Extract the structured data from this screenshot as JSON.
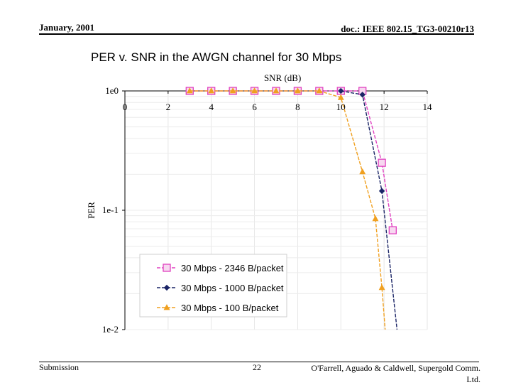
{
  "header": {
    "date": "January, 2001",
    "doc_id": "doc.: IEEE 802.15_TG3-00210r13"
  },
  "title": "PER v. SNR in the AWGN channel for 30 Mbps",
  "footer": {
    "left": "Submission",
    "page": "22",
    "right": "O'Farrell, Aguado & Caldwell, Supergold Comm. Ltd."
  },
  "chart_data": {
    "type": "line",
    "xlabel": "SNR (dB)",
    "ylabel": "PER",
    "xlim": [
      0,
      14
    ],
    "x_ticks": [
      "0",
      "2",
      "4",
      "6",
      "8",
      "10",
      "12",
      "14"
    ],
    "ylim": [
      0.01,
      1
    ],
    "yscale": "log",
    "y_ticks": [
      {
        "value": 1,
        "label": "1e0"
      },
      {
        "value": 0.1,
        "label": "1e-1"
      },
      {
        "value": 0.01,
        "label": "1e-2"
      }
    ],
    "grid": true,
    "x_axis_position": "top",
    "legend_position": "bottom-left",
    "series": [
      {
        "name": "30 Mbps - 2346 B/packet",
        "color": "#e040c0",
        "marker": "square",
        "dashed": true,
        "x": [
          3,
          4,
          5,
          6,
          7,
          8,
          9,
          10,
          11,
          11.9,
          12.4
        ],
        "y": [
          1,
          1,
          1,
          1,
          1,
          1,
          1,
          1,
          1,
          0.25,
          0.068
        ],
        "tail": [
          12.4,
          0.068
        ]
      },
      {
        "name": "30 Mbps - 1000 B/packet",
        "color": "#1a2466",
        "marker": "diamond",
        "dashed": true,
        "x": [
          10,
          11,
          11.9
        ],
        "y": [
          1,
          0.93,
          0.145
        ],
        "tail": [
          12.6,
          0.01
        ]
      },
      {
        "name": "30 Mbps - 100 B/packet",
        "color": "#f0a020",
        "marker": "triangle",
        "dashed": true,
        "x": [
          3,
          4,
          5,
          6,
          7,
          8,
          9,
          10,
          11,
          11.6,
          11.9
        ],
        "y": [
          1,
          1,
          1,
          1,
          1,
          1,
          1,
          0.88,
          0.21,
          0.085,
          0.0225
        ],
        "tail": [
          12.05,
          0.01
        ]
      }
    ]
  }
}
